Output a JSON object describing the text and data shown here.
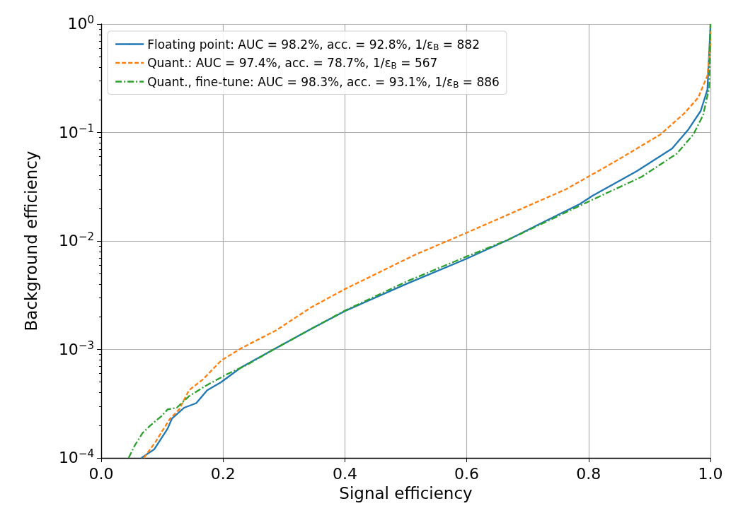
{
  "chart_data": {
    "type": "line",
    "xlabel": "Signal efficiency",
    "ylabel": "Background efficiency",
    "log": "y",
    "grid": true,
    "legend": "top left",
    "marker": "none",
    "xlim": [
      0,
      1
    ],
    "xticks": [
      {
        "value": 0,
        "label": "0.0"
      },
      0.2,
      0.4,
      0.6,
      0.8,
      {
        "value": 1,
        "label": "1.0"
      }
    ],
    "ylim": [
      0.0001,
      1
    ],
    "yticks": [
      {
        "value": 0.0001,
        "label": "10$^{−4}$"
      },
      {
        "value": 0.001,
        "label": "10$^{−3}$"
      },
      {
        "value": 0.01,
        "label": "10$^{−2}$"
      },
      {
        "value": 0.1,
        "label": "10$^{−1}$"
      },
      {
        "value": 1,
        "label": "10$^{0}$"
      }
    ],
    "series": [
      {
        "name": "Floating point: AUC = 98.2%, acc. = 92.8%, 1/ε$_{B}$ = 882",
        "color": "#1f77b4",
        "line_style": "solid",
        "x": [
          0.066,
          0.087,
          0.109,
          0.116,
          0.136,
          0.156,
          0.174,
          0.197,
          0.229,
          0.283,
          0.345,
          0.4,
          0.5,
          0.598,
          0.667,
          0.786,
          0.806,
          0.879,
          0.937,
          0.964,
          0.984,
          0.995,
          1.0
        ],
        "values": [
          0.0001,
          0.00012,
          0.000186,
          0.00023,
          0.00029,
          0.00032,
          0.00042,
          0.0005,
          0.00068,
          0.001,
          0.00155,
          0.00226,
          0.004,
          0.0068,
          0.0102,
          0.022,
          0.026,
          0.044,
          0.071,
          0.107,
          0.158,
          0.248,
          0.95
        ]
      },
      {
        "name": "Quant.: AUC = 97.4%, acc. = 78.7%, 1/ε$_{B}$ = 567",
        "color": "#ff7f0e",
        "line_style": "dashed",
        "x": [
          0.07,
          0.089,
          0.101,
          0.113,
          0.128,
          0.144,
          0.167,
          0.197,
          0.229,
          0.287,
          0.345,
          0.4,
          0.516,
          0.592,
          0.67,
          0.763,
          0.841,
          0.918,
          0.957,
          0.98,
          0.995,
          1.0,
          1.0
        ],
        "values": [
          0.0001,
          0.00014,
          0.00018,
          0.00023,
          0.00028,
          0.00042,
          0.00053,
          0.00079,
          0.00102,
          0.0015,
          0.00245,
          0.0036,
          0.0075,
          0.0114,
          0.0177,
          0.03,
          0.053,
          0.096,
          0.15,
          0.21,
          0.335,
          0.65,
          1.0
        ]
      },
      {
        "name": "Quant., fine-tune: AUC = 98.3%, acc. = 93.1%, 1/ε$_{B}$ = 886",
        "color": "#2ca02c",
        "line_style": "dashdot",
        "x": [
          0.045,
          0.055,
          0.068,
          0.081,
          0.098,
          0.109,
          0.124,
          0.144,
          0.171,
          0.206,
          0.237,
          0.283,
          0.345,
          0.4,
          0.5,
          0.6,
          0.667,
          0.813,
          0.887,
          0.945,
          0.972,
          0.988,
          0.998,
          1.0
        ],
        "values": [
          0.0001,
          0.00013,
          0.00017,
          0.0002,
          0.00024,
          0.00028,
          0.00029,
          0.00037,
          0.00046,
          0.00059,
          0.00071,
          0.001,
          0.00155,
          0.00228,
          0.0042,
          0.0072,
          0.0102,
          0.025,
          0.039,
          0.064,
          0.096,
          0.145,
          0.26,
          1.0
        ]
      }
    ]
  }
}
